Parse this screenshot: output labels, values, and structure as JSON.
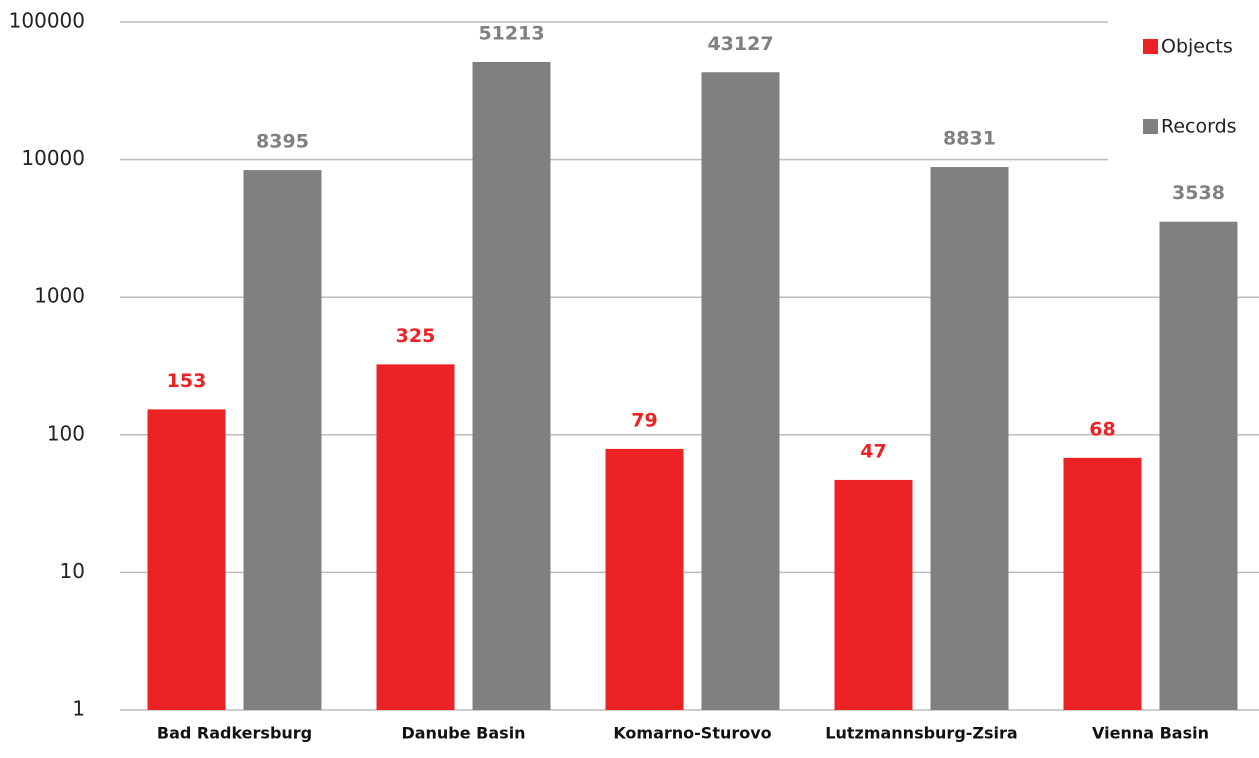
{
  "chart_data": {
    "type": "bar",
    "log_scale": true,
    "grid": true,
    "legend": "upper right",
    "categories": [
      "Bad Radkersburg",
      "Danube Basin",
      "Komarno-Sturovo",
      "Lutzmannsburg-Zsira",
      "Vienna Basin"
    ],
    "series": [
      {
        "name": "Objects",
        "color": "#ed2224",
        "values": [
          153,
          325,
          79,
          47,
          68
        ]
      },
      {
        "name": "Records",
        "color": "#808080",
        "values": [
          8395,
          51213,
          43127,
          8831,
          3538
        ]
      }
    ],
    "ylim": [
      1,
      100000
    ],
    "yticks": [
      1,
      10,
      100,
      1000,
      10000,
      100000
    ]
  }
}
